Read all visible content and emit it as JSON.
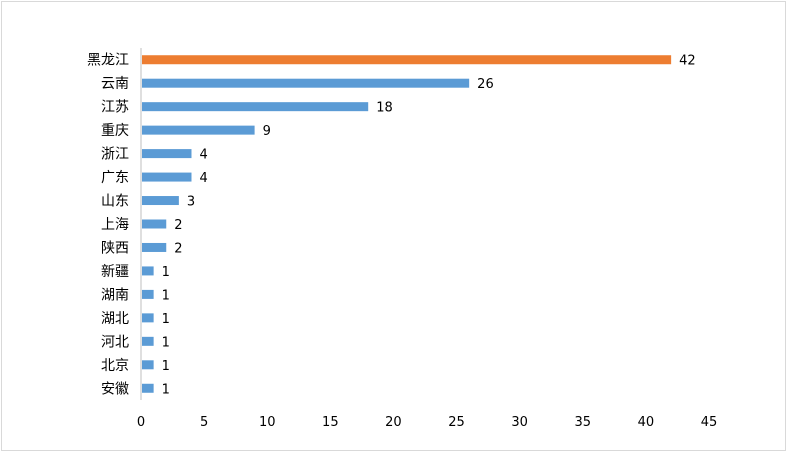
{
  "chart_data": {
    "type": "bar",
    "orientation": "horizontal",
    "categories": [
      "黑龙江",
      "云南",
      "江苏",
      "重庆",
      "浙江",
      "广东",
      "山东",
      "上海",
      "陕西",
      "新疆",
      "湖南",
      "湖北",
      "河北",
      "北京",
      "安徽"
    ],
    "values": [
      42,
      26,
      18,
      9,
      4,
      4,
      3,
      2,
      2,
      1,
      1,
      1,
      1,
      1,
      1
    ],
    "highlight_index": 0,
    "colors": {
      "bar": "#5b9bd5",
      "highlight": "#ed7d31",
      "axis": "#bfbfbf"
    },
    "xlim": [
      0,
      45
    ],
    "xticks": [
      0,
      5,
      10,
      15,
      20,
      25,
      30,
      35,
      40,
      45
    ],
    "data_labels": true,
    "grid": false,
    "legend": "none"
  }
}
